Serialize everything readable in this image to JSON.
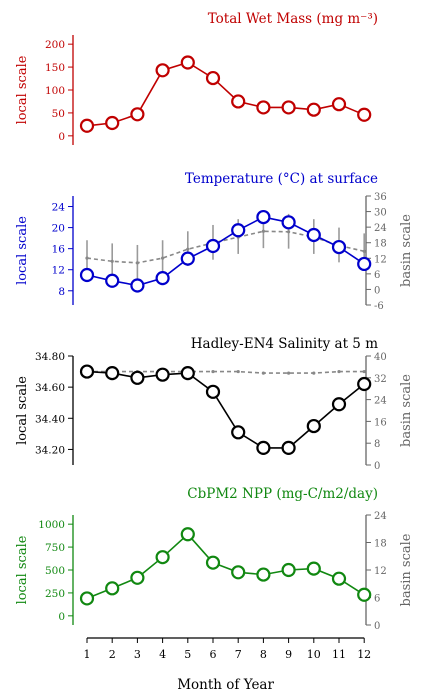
{
  "chart_data": [
    {
      "type": "line",
      "title": "Total Wet Mass (mg m⁻³)",
      "ylabel": "local scale",
      "ylim": [
        -20,
        220
      ],
      "yticks": [
        0,
        50,
        100,
        150,
        200
      ],
      "color": "#c00000",
      "x": [
        1,
        2,
        3,
        4,
        5,
        6,
        7,
        8,
        9,
        10,
        11,
        12
      ],
      "series": [
        {
          "values": [
            22,
            28,
            47,
            143,
            160,
            126,
            75,
            62,
            62,
            57,
            69,
            46
          ]
        }
      ]
    },
    {
      "type": "line",
      "title": "Temperature (°C) at surface",
      "ylabel": "local scale",
      "ylabel_right": "basin scale",
      "ylim": [
        5.3,
        26
      ],
      "yticks": [
        8,
        12,
        16,
        20,
        24
      ],
      "ylim_right": [
        -6,
        36
      ],
      "yticks_right": [
        -6,
        0,
        6,
        12,
        18,
        24,
        30,
        36
      ],
      "color": "#0000cc",
      "x": [
        1,
        2,
        3,
        4,
        5,
        6,
        7,
        8,
        9,
        10,
        11,
        12
      ],
      "series": [
        {
          "values": [
            11.0,
            9.9,
            9.0,
            10.4,
            14.1,
            16.5,
            19.5,
            22.0,
            21.0,
            18.6,
            16.3,
            13.1
          ]
        },
        {
          "values": [
            14.2,
            13.6,
            13.3,
            14.2,
            15.9,
            17.1,
            18.2,
            19.3,
            19.2,
            18.2,
            16.6,
            15.5
          ]
        }
      ]
    },
    {
      "type": "line",
      "title": "Hadley-EN4 Salinity at 5 m",
      "ylabel": "local scale",
      "ylabel_right": "basin scale",
      "ylim": [
        34.1,
        34.8
      ],
      "yticks": [
        34.2,
        34.4,
        34.6,
        34.8
      ],
      "yticklabels": [
        "34.20",
        "34.40",
        "34.60",
        "34.80"
      ],
      "ylim_right": [
        0,
        40
      ],
      "yticks_right": [
        0,
        8,
        16,
        24,
        32,
        40
      ],
      "color": "#000000",
      "x": [
        1,
        2,
        3,
        4,
        5,
        6,
        7,
        8,
        9,
        10,
        11,
        12
      ],
      "series": [
        {
          "values": [
            34.7,
            34.69,
            34.66,
            34.68,
            34.69,
            34.57,
            34.31,
            34.21,
            34.21,
            34.35,
            34.49,
            34.62
          ]
        },
        {
          "values": [
            34.7,
            34.7,
            34.7,
            34.7,
            34.7,
            34.7,
            34.7,
            34.69,
            34.69,
            34.69,
            34.7,
            34.7
          ]
        }
      ]
    },
    {
      "type": "line",
      "title": "CbPM2 NPP (mg-C/m2/day)",
      "ylabel": "local scale",
      "ylabel_right": "basin scale",
      "ylim": [
        -100,
        1100
      ],
      "yticks": [
        0,
        250,
        500,
        750,
        1000
      ],
      "ylim_right": [
        0,
        24
      ],
      "yticks_right": [
        0,
        6,
        12,
        18,
        24
      ],
      "color": "#118811",
      "x": [
        1,
        2,
        3,
        4,
        5,
        6,
        7,
        8,
        9,
        10,
        11,
        12
      ],
      "series": [
        {
          "values": [
            190,
            300,
            415,
            640,
            890,
            580,
            475,
            450,
            500,
            515,
            405,
            230
          ]
        }
      ]
    }
  ],
  "xaxis": {
    "label": "Month of Year",
    "ticks": [
      1,
      2,
      3,
      4,
      5,
      6,
      7,
      8,
      9,
      10,
      11,
      12
    ]
  }
}
